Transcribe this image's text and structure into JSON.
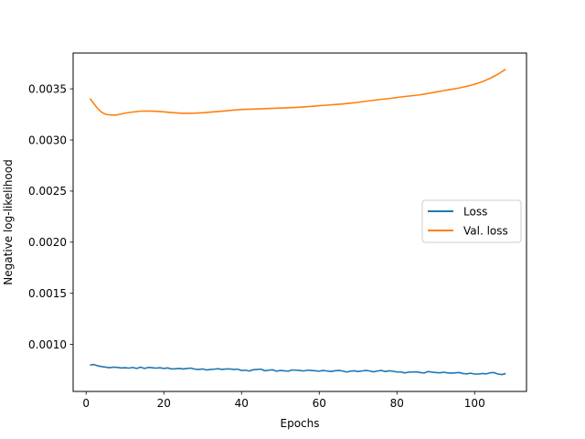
{
  "chart_data": {
    "type": "line",
    "xlabel": "Epochs",
    "ylabel": "Negative log-likelihood",
    "xlim": [
      -3.35,
      113.35
    ],
    "ylim": [
      0.00054,
      0.00385
    ],
    "xticks": [
      0,
      20,
      40,
      60,
      80,
      100
    ],
    "yticks": [
      0.001,
      0.0015,
      0.002,
      0.0025,
      0.003,
      0.0035
    ],
    "ytick_labels": [
      "0.0010",
      "0.0015",
      "0.0020",
      "0.0025",
      "0.0030",
      "0.0035"
    ],
    "grid": false,
    "legend_position": "center-right",
    "series": [
      {
        "name": "Loss",
        "color": "#1f77b4",
        "x": [
          1,
          2,
          3,
          4,
          5,
          6,
          7,
          8,
          9,
          10,
          11,
          12,
          13,
          14,
          15,
          16,
          17,
          18,
          19,
          20,
          21,
          22,
          23,
          24,
          25,
          26,
          27,
          28,
          29,
          30,
          31,
          32,
          33,
          34,
          35,
          36,
          37,
          38,
          39,
          40,
          41,
          42,
          43,
          44,
          45,
          46,
          47,
          48,
          49,
          50,
          51,
          52,
          53,
          54,
          55,
          56,
          57,
          58,
          59,
          60,
          61,
          62,
          63,
          64,
          65,
          66,
          67,
          68,
          69,
          70,
          71,
          72,
          73,
          74,
          75,
          76,
          77,
          78,
          79,
          80,
          81,
          82,
          83,
          84,
          85,
          86,
          87,
          88,
          89,
          90,
          91,
          92,
          93,
          94,
          95,
          96,
          97,
          98,
          99,
          100,
          101,
          102,
          103,
          104,
          105,
          106,
          107,
          108
        ],
        "y": [
          0.000798,
          0.000803,
          0.00079,
          0.000783,
          0.000778,
          0.000772,
          0.000778,
          0.000775,
          0.00077,
          0.000772,
          0.000768,
          0.000775,
          0.000765,
          0.000778,
          0.000765,
          0.000775,
          0.000772,
          0.000768,
          0.000772,
          0.000765,
          0.00077,
          0.00076,
          0.000762,
          0.000765,
          0.00076,
          0.000765,
          0.000768,
          0.000758,
          0.000755,
          0.00076,
          0.00075,
          0.000755,
          0.000758,
          0.000762,
          0.000755,
          0.00076,
          0.00076,
          0.000755,
          0.000758,
          0.000745,
          0.000748,
          0.00074,
          0.000752,
          0.000755,
          0.000758,
          0.000742,
          0.000748,
          0.000752,
          0.000738,
          0.000745,
          0.000742,
          0.000738,
          0.00075,
          0.000748,
          0.000745,
          0.00074,
          0.000748,
          0.000745,
          0.000742,
          0.000738,
          0.000745,
          0.00074,
          0.000735,
          0.000742,
          0.000745,
          0.00074,
          0.00073,
          0.000738,
          0.000742,
          0.000735,
          0.00074,
          0.000745,
          0.00074,
          0.000732,
          0.00074,
          0.000745,
          0.000735,
          0.000742,
          0.000738,
          0.00073,
          0.00073,
          0.000722,
          0.000728,
          0.00073,
          0.000732,
          0.000725,
          0.00072,
          0.000735,
          0.000728,
          0.000725,
          0.000722,
          0.000728,
          0.000722,
          0.000718,
          0.000722,
          0.000725,
          0.000715,
          0.000712,
          0.000718,
          0.00071,
          0.00071,
          0.000715,
          0.000712,
          0.000722,
          0.000725,
          0.00071,
          0.000705,
          0.000715
        ]
      },
      {
        "name": "Val. loss",
        "color": "#ff7f0e",
        "x": [
          1,
          2,
          3,
          4,
          5,
          6,
          7,
          8,
          10,
          12,
          14,
          16,
          18,
          20,
          22,
          24,
          26,
          28,
          30,
          32,
          34,
          36,
          38,
          40,
          42,
          44,
          46,
          48,
          50,
          52,
          54,
          56,
          58,
          60,
          62,
          64,
          66,
          68,
          70,
          72,
          74,
          76,
          78,
          80,
          82,
          84,
          86,
          88,
          90,
          92,
          94,
          96,
          98,
          100,
          102,
          104,
          106,
          108
        ],
        "y": [
          0.003405,
          0.003355,
          0.003305,
          0.00327,
          0.003252,
          0.003245,
          0.003243,
          0.003245,
          0.003262,
          0.003273,
          0.003282,
          0.003283,
          0.00328,
          0.003275,
          0.003268,
          0.003262,
          0.00326,
          0.003262,
          0.003266,
          0.003272,
          0.003278,
          0.003285,
          0.003292,
          0.003298,
          0.0033,
          0.003303,
          0.003306,
          0.003309,
          0.003312,
          0.003315,
          0.003318,
          0.003323,
          0.003328,
          0.003335,
          0.00334,
          0.003346,
          0.003352,
          0.00336,
          0.003368,
          0.003378,
          0.003388,
          0.003397,
          0.003405,
          0.003415,
          0.003425,
          0.003433,
          0.003442,
          0.003455,
          0.003468,
          0.003482,
          0.003495,
          0.003508,
          0.003525,
          0.003545,
          0.00357,
          0.003603,
          0.003643,
          0.003692
        ]
      }
    ]
  }
}
